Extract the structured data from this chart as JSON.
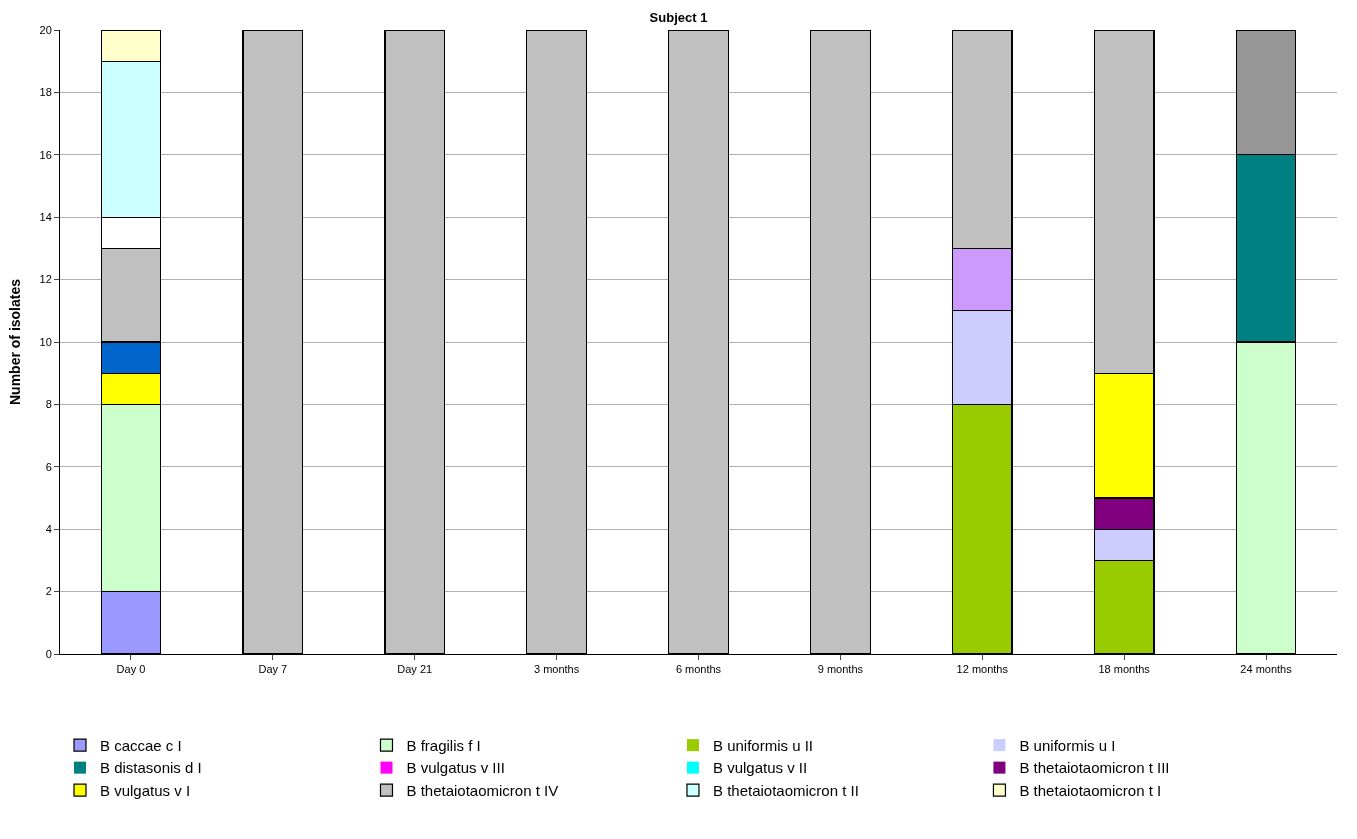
{
  "chart_data": {
    "type": "bar",
    "stacked": true,
    "title": "Subject 1",
    "ylabel": "Number of isolates",
    "categories": [
      "Day 0",
      "Day 7",
      "Day 21",
      "3 months",
      "6 months",
      "9 months",
      "12 months",
      "18 months",
      "24 months"
    ],
    "series": [
      {
        "name": "B caccae c I",
        "color": "#9999ff",
        "values": [
          2,
          0,
          0,
          0,
          0,
          0,
          0,
          0,
          0
        ]
      },
      {
        "name": "B fragilis f I",
        "color": "#ccffcc",
        "values": [
          6,
          0,
          0,
          0,
          0,
          0,
          0,
          0,
          10
        ]
      },
      {
        "name": "B uniformis u II",
        "color": "#99cc00",
        "values": [
          0,
          0,
          0,
          0,
          0,
          0,
          8,
          3,
          0
        ]
      },
      {
        "name": "B uniformis u I",
        "color": "#ccccff",
        "values": [
          0,
          0,
          0,
          0,
          0,
          0,
          3,
          1,
          0
        ]
      },
      {
        "name": "B distasonis d I",
        "color": "#008080",
        "values": [
          0,
          0,
          0,
          0,
          0,
          0,
          0,
          0,
          6
        ]
      },
      {
        "name": "B vulgatus v III",
        "color": "#ff00ff",
        "values": [
          0,
          0,
          0,
          0,
          0,
          0,
          0,
          0,
          0
        ]
      },
      {
        "name": "B vulgatus v II",
        "color": "#00ffff",
        "values": [
          0,
          0,
          0,
          0,
          0,
          0,
          0,
          0,
          0
        ]
      },
      {
        "name": "B thetaiotaomicron t III",
        "color": "#800080",
        "values": [
          0,
          0,
          0,
          0,
          0,
          0,
          0,
          1,
          0
        ]
      },
      {
        "name": "B vulgatus v I",
        "color": "#ffff00",
        "values": [
          1,
          0,
          0,
          0,
          0,
          0,
          0,
          4,
          0
        ]
      },
      {
        "color": "#0066cc",
        "values": [
          1,
          0,
          0,
          0,
          0,
          0,
          0,
          0,
          0
        ]
      },
      {
        "color": "#cc99ff",
        "values": [
          0,
          0,
          0,
          0,
          0,
          0,
          2,
          0,
          0
        ]
      },
      {
        "name": "B thetaiotaomicron t IV",
        "color": "#c0c0c0",
        "values": [
          3,
          20,
          20,
          20,
          20,
          20,
          7,
          11,
          0
        ]
      },
      {
        "color": "#ffffff",
        "values": [
          1,
          0,
          0,
          0,
          0,
          0,
          0,
          0,
          0
        ]
      },
      {
        "name": "B thetaiotaomicron t II",
        "color": "#ccffff",
        "values": [
          5,
          0,
          0,
          0,
          0,
          0,
          0,
          0,
          0
        ]
      },
      {
        "name": "B thetaiotaomicron t I",
        "color": "#ffffcc",
        "values": [
          1,
          0,
          0,
          0,
          0,
          0,
          0,
          0,
          0
        ]
      },
      {
        "color": "#969696",
        "values": [
          0,
          0,
          0,
          0,
          0,
          0,
          0,
          0,
          4
        ]
      }
    ],
    "ylim": [
      0,
      20
    ],
    "yticks": [
      0,
      2,
      4,
      6,
      8,
      10,
      12,
      14,
      16,
      18,
      20
    ],
    "grid": "y",
    "legend": "bottom"
  }
}
